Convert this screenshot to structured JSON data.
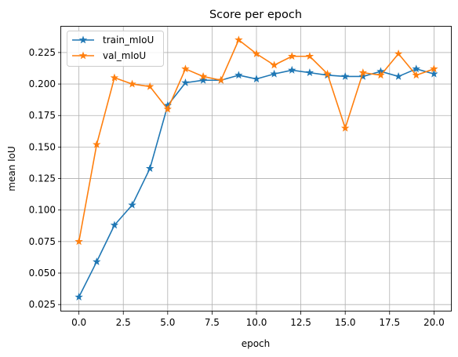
{
  "chart_data": {
    "type": "line",
    "title": "Score per epoch",
    "xlabel": "epoch",
    "ylabel": "mean IoU",
    "xlim": [
      -1.0,
      21.0
    ],
    "ylim": [
      0.0195,
      0.2455
    ],
    "xticks": [
      "0.0",
      "2.5",
      "5.0",
      "7.5",
      "10.0",
      "12.5",
      "15.0",
      "17.5",
      "20.0"
    ],
    "yticks": [
      "0.025",
      "0.050",
      "0.075",
      "0.100",
      "0.125",
      "0.150",
      "0.175",
      "0.200",
      "0.225"
    ],
    "grid": true,
    "legend_position": "top-left",
    "marker": "star",
    "x": [
      0,
      1,
      2,
      3,
      4,
      5,
      6,
      7,
      8,
      9,
      10,
      11,
      12,
      13,
      14,
      15,
      16,
      17,
      18,
      19,
      20
    ],
    "series": [
      {
        "name": "train_mIoU",
        "color": "#1f77b4",
        "values": [
          0.031,
          0.059,
          0.088,
          0.104,
          0.133,
          0.183,
          0.201,
          0.203,
          0.203,
          0.207,
          0.204,
          0.208,
          0.211,
          0.209,
          0.207,
          0.206,
          0.206,
          0.21,
          0.206,
          0.212,
          0.208
        ]
      },
      {
        "name": "val_mIoU",
        "color": "#ff7f0e",
        "values": [
          0.075,
          0.152,
          0.205,
          0.2,
          0.198,
          0.18,
          0.212,
          0.206,
          0.203,
          0.235,
          0.224,
          0.215,
          0.222,
          0.222,
          0.208,
          0.165,
          0.209,
          0.207,
          0.224,
          0.207,
          0.212
        ]
      }
    ]
  }
}
